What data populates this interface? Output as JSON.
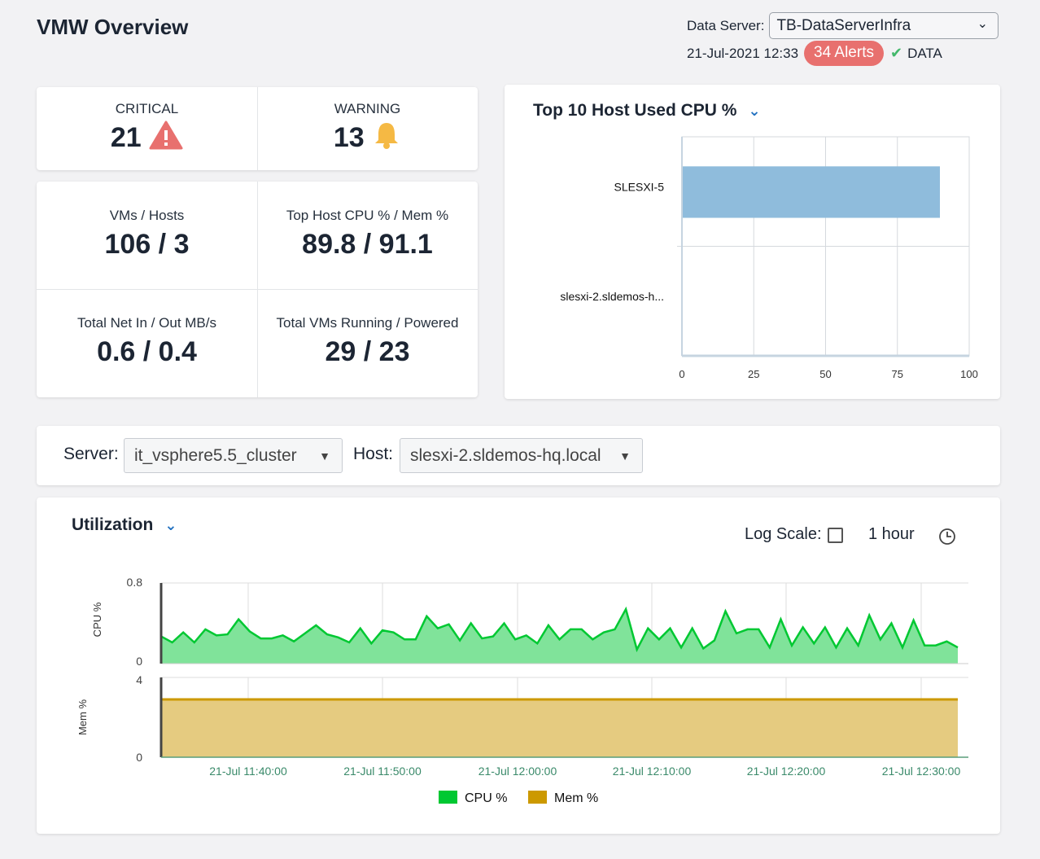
{
  "header": {
    "title": "VMW Overview",
    "data_server_label": "Data Server:",
    "data_server_value": "TB-DataServerInfra",
    "timestamp": "21-Jul-2021 12:33",
    "alerts": "34 Alerts",
    "data_status": "DATA",
    "colors": {
      "alert": "#e8706e",
      "ok": "#43b86b"
    }
  },
  "status": {
    "critical_label": "CRITICAL",
    "critical_value": "21",
    "warning_label": "WARNING",
    "warning_value": "13"
  },
  "kpis": [
    {
      "label": "VMs / Hosts",
      "value": "106 / 3"
    },
    {
      "label": "Top Host CPU % / Mem %",
      "value": "89.8 / 91.1"
    },
    {
      "label": "Total Net In / Out MB/s",
      "value": "0.6 / 0.4"
    },
    {
      "label": "Total VMs Running / Powered",
      "value": "29 / 23"
    }
  ],
  "filters": {
    "server_label": "Server:",
    "server_value": "it_vsphere5.5_cluster",
    "host_label": "Host:",
    "host_value": "slesxi-2.sldemos-hq.local"
  },
  "utilization": {
    "title": "Utilization",
    "log_scale_label": "Log Scale:",
    "log_scale_checked": false,
    "range": "1 hour"
  },
  "chart_data": [
    {
      "type": "bar",
      "title": "Top 10 Host Used CPU %",
      "orientation": "horizontal",
      "categories": [
        "SLESXI-5",
        "slesxi-2.sldemos-h..."
      ],
      "values": [
        89.8,
        0
      ],
      "xlim": [
        0,
        100
      ],
      "xticks": [
        "0",
        "25",
        "50",
        "75",
        "100"
      ],
      "color": "#8fbcdc"
    },
    {
      "type": "area",
      "title": "CPU %",
      "ylabel": "CPU %",
      "ylim": [
        0,
        0.8
      ],
      "yticks": [
        "0",
        "0.8"
      ],
      "color": "#00c832",
      "x_start": "11:33:30",
      "x_end": "12:32:50",
      "values": [
        0.27,
        0.21,
        0.31,
        0.21,
        0.34,
        0.28,
        0.29,
        0.44,
        0.32,
        0.25,
        0.25,
        0.28,
        0.22,
        0.3,
        0.38,
        0.29,
        0.26,
        0.21,
        0.35,
        0.2,
        0.33,
        0.31,
        0.24,
        0.24,
        0.47,
        0.35,
        0.39,
        0.23,
        0.4,
        0.25,
        0.27,
        0.4,
        0.24,
        0.28,
        0.2,
        0.38,
        0.24,
        0.34,
        0.34,
        0.24,
        0.31,
        0.34,
        0.54,
        0.14,
        0.35,
        0.24,
        0.35,
        0.16,
        0.35,
        0.15,
        0.23,
        0.52,
        0.3,
        0.34,
        0.34,
        0.16,
        0.44,
        0.18,
        0.36,
        0.2,
        0.36,
        0.16,
        0.35,
        0.18,
        0.48,
        0.24,
        0.4,
        0.16,
        0.43,
        0.18,
        0.18,
        0.22,
        0.16
      ]
    },
    {
      "type": "area",
      "title": "Mem %",
      "ylabel": "Mem %",
      "ylim": [
        0,
        4
      ],
      "yticks": [
        "0",
        "4"
      ],
      "color": "#cc9900",
      "values": [
        2.9,
        2.9
      ]
    }
  ],
  "time_axis": {
    "ticks": [
      "21-Jul 11:40:00",
      "21-Jul 11:50:00",
      "21-Jul 12:00:00",
      "21-Jul 12:10:00",
      "21-Jul 12:20:00",
      "21-Jul 12:30:00"
    ]
  },
  "legend": [
    {
      "label": "CPU %",
      "color": "#00c832"
    },
    {
      "label": "Mem %",
      "color": "#cc9900"
    }
  ]
}
